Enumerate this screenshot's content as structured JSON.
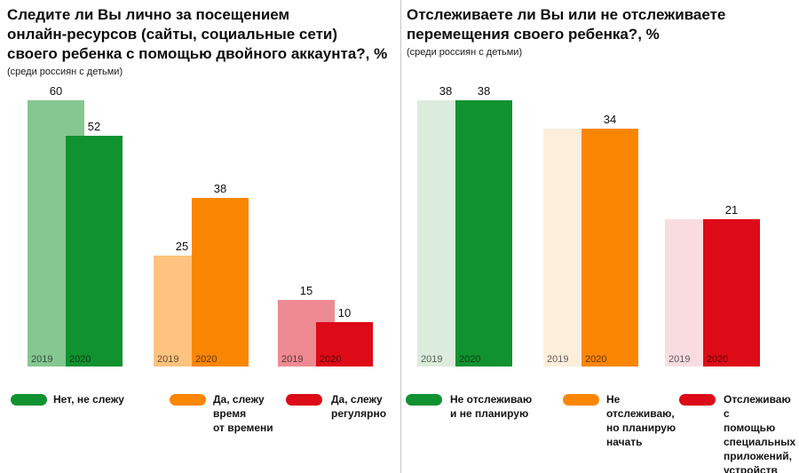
{
  "page": {
    "background": "#ffffff",
    "divider_color": "#c7c7c7"
  },
  "chart_data": [
    {
      "type": "bar",
      "title": "Следите ли Вы лично за посещением онлайн-ресурсов (сайты, социальные сети) своего ребенка с помощью двойного аккаунта?, %",
      "title_lines": [
        "Следите ли Вы лично за посещением",
        "онлайн-ресурсов (сайты, социальные сети)",
        "своего ребенка с помощью двойного аккаунта?, %"
      ],
      "subtitle": "(среди россиян с детьми)",
      "ylim": [
        0,
        60
      ],
      "grid": false,
      "axes_shown": false,
      "legend_position": "bottom",
      "series_names": [
        "2019",
        "2020"
      ],
      "groups": [
        {
          "category": "Нет, не слежу",
          "legend_label": "Нет, не слежу",
          "legend_color": "#119230",
          "bars": [
            {
              "year": "2019",
              "value": 60,
              "label": "60",
              "color": "#85c791"
            },
            {
              "year": "2020",
              "value": 52,
              "label": "52",
              "color": "#119230"
            }
          ]
        },
        {
          "category": "Да, слежу время от времени",
          "legend_label": "Да, слежу\nвремя\nот времени",
          "legend_color": "#fb8604",
          "bars": [
            {
              "year": "2019",
              "value": 25,
              "label": "25",
              "color": "#ffc37f"
            },
            {
              "year": "2020",
              "value": 38,
              "label": "38",
              "color": "#fb8604"
            }
          ]
        },
        {
          "category": "Да, слежу регулярно",
          "legend_label": "Да, слежу\nрегулярно",
          "legend_color": "#dd0a17",
          "bars": [
            {
              "year": "2019",
              "value": 15,
              "label": "15",
              "color": "#ee8a91"
            },
            {
              "year": "2020",
              "value": 10,
              "label": "10",
              "color": "#dd0a17"
            }
          ]
        }
      ]
    },
    {
      "type": "bar",
      "title": "Отслеживаете ли Вы или не отслеживаете перемещения своего ребенка?, %",
      "title_lines": [
        "Отслеживаете ли Вы или не отслеживаете",
        "перемещения своего ребенка?, %"
      ],
      "subtitle": "(среди россиян с детьми)",
      "ylim": [
        0,
        38
      ],
      "grid": false,
      "axes_shown": false,
      "legend_position": "bottom",
      "series_names": [
        "2019",
        "2020"
      ],
      "groups": [
        {
          "category": "Не отслеживаю и не планирую",
          "legend_label": "Не отслеживаю\nи не планирую",
          "legend_color": "#119230",
          "bars": [
            {
              "year": "2019",
              "value": 38,
              "label": "38",
              "color": "#dcecdc"
            },
            {
              "year": "2020",
              "value": 38,
              "label": "38",
              "color": "#119230"
            }
          ]
        },
        {
          "category": "Не отслеживаю, но планирую начать",
          "legend_label": "Не\nотслеживаю,\nно планирую\nначать",
          "legend_color": "#fb8604",
          "bars": [
            {
              "year": "2019",
              "value": 34,
              "label": "",
              "color": "#fdeedc"
            },
            {
              "year": "2020",
              "value": 34,
              "label": "34",
              "color": "#fb8604"
            }
          ]
        },
        {
          "category": "Отслеживаю с помощью специальных приложений, устройств",
          "legend_label": "Отслеживаю с\nпомощью\nспециальных\nприложений,\nустройств",
          "legend_color": "#dd0a17",
          "bars": [
            {
              "year": "2019",
              "value": 21,
              "label": "",
              "color": "#f9dce0"
            },
            {
              "year": "2020",
              "value": 21,
              "label": "21",
              "color": "#dd0a17"
            }
          ]
        }
      ]
    }
  ]
}
